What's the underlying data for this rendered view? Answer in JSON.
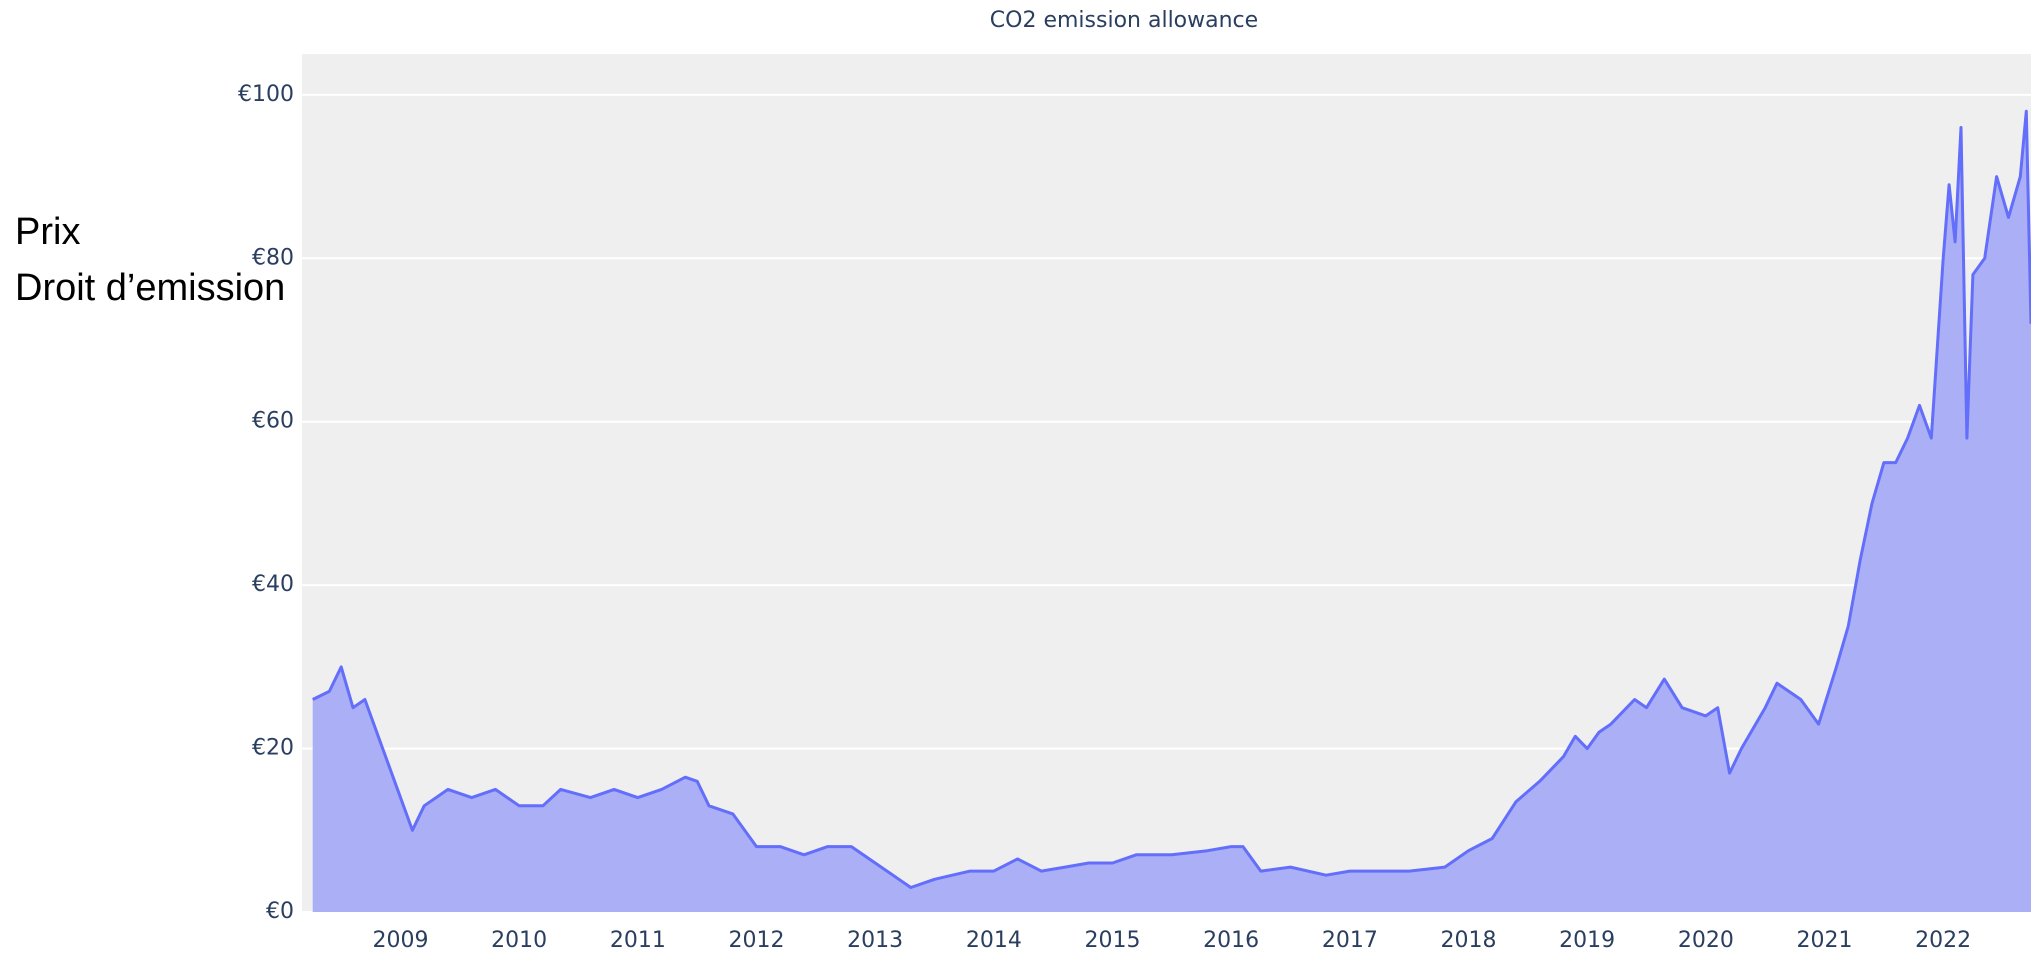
{
  "chart_data": {
    "type": "area",
    "title": "CO2 emission allowance",
    "ylabel": [
      "Prix",
      "Droit d’emission"
    ],
    "x": [
      2008.26,
      2008.4,
      2008.5,
      2008.6,
      2008.7,
      2008.85,
      2008.95,
      2009.1,
      2009.2,
      2009.4,
      2009.6,
      2009.8,
      2010.0,
      2010.2,
      2010.35,
      2010.6,
      2010.8,
      2011.0,
      2011.2,
      2011.4,
      2011.5,
      2011.6,
      2011.8,
      2012.0,
      2012.2,
      2012.4,
      2012.6,
      2012.8,
      2013.0,
      2013.2,
      2013.3,
      2013.5,
      2013.8,
      2014.0,
      2014.2,
      2014.4,
      2014.6,
      2014.8,
      2015.0,
      2015.2,
      2015.5,
      2015.8,
      2016.0,
      2016.1,
      2016.25,
      2016.5,
      2016.8,
      2017.0,
      2017.2,
      2017.5,
      2017.8,
      2018.0,
      2018.2,
      2018.4,
      2018.6,
      2018.8,
      2018.9,
      2019.0,
      2019.1,
      2019.2,
      2019.4,
      2019.5,
      2019.65,
      2019.8,
      2020.0,
      2020.1,
      2020.2,
      2020.3,
      2020.5,
      2020.6,
      2020.8,
      2020.95,
      2021.1,
      2021.2,
      2021.3,
      2021.4,
      2021.5,
      2021.6,
      2021.7,
      2021.8,
      2021.9,
      2022.0,
      2022.05,
      2022.1,
      2022.15,
      2022.2,
      2022.25,
      2022.35,
      2022.45,
      2022.55,
      2022.65,
      2022.7,
      2022.74
    ],
    "series": [
      {
        "name": "CO2 emission allowance",
        "color": "#636efa",
        "fill": "#abaff5",
        "values": [
          26,
          27,
          30,
          25,
          26,
          20,
          16,
          10,
          13,
          15,
          14,
          15,
          13,
          13,
          15,
          14,
          15,
          14,
          15,
          16.5,
          16,
          13,
          12,
          8,
          8,
          7,
          8,
          8,
          6,
          4,
          3,
          4,
          5,
          5,
          6.5,
          5,
          5.5,
          6,
          6,
          7,
          7,
          7.5,
          8,
          8,
          5,
          5.5,
          4.5,
          5,
          5,
          5,
          5.5,
          7.5,
          9,
          13.5,
          16,
          19,
          21.5,
          20,
          22,
          23,
          26,
          25,
          28.5,
          25,
          24,
          25,
          17,
          20,
          25,
          28,
          26,
          23,
          30,
          35,
          43,
          50,
          55,
          55,
          58,
          62,
          58,
          80,
          89,
          82,
          96,
          58,
          78,
          80,
          90,
          85,
          90,
          98,
          72
        ]
      }
    ],
    "xlim": [
      2008.17,
      2022.74
    ],
    "xticks": [
      2009,
      2010,
      2011,
      2012,
      2013,
      2014,
      2015,
      2016,
      2017,
      2018,
      2019,
      2020,
      2021,
      2022
    ],
    "ylim": [
      0,
      105
    ],
    "yticks": [
      {
        "value": 0,
        "label": "€0"
      },
      {
        "value": 20,
        "label": "€20"
      },
      {
        "value": 40,
        "label": "€40"
      },
      {
        "value": 60,
        "label": "€60"
      },
      {
        "value": 80,
        "label": "€80"
      },
      {
        "value": 100,
        "label": "€100"
      }
    ],
    "grid": true
  }
}
